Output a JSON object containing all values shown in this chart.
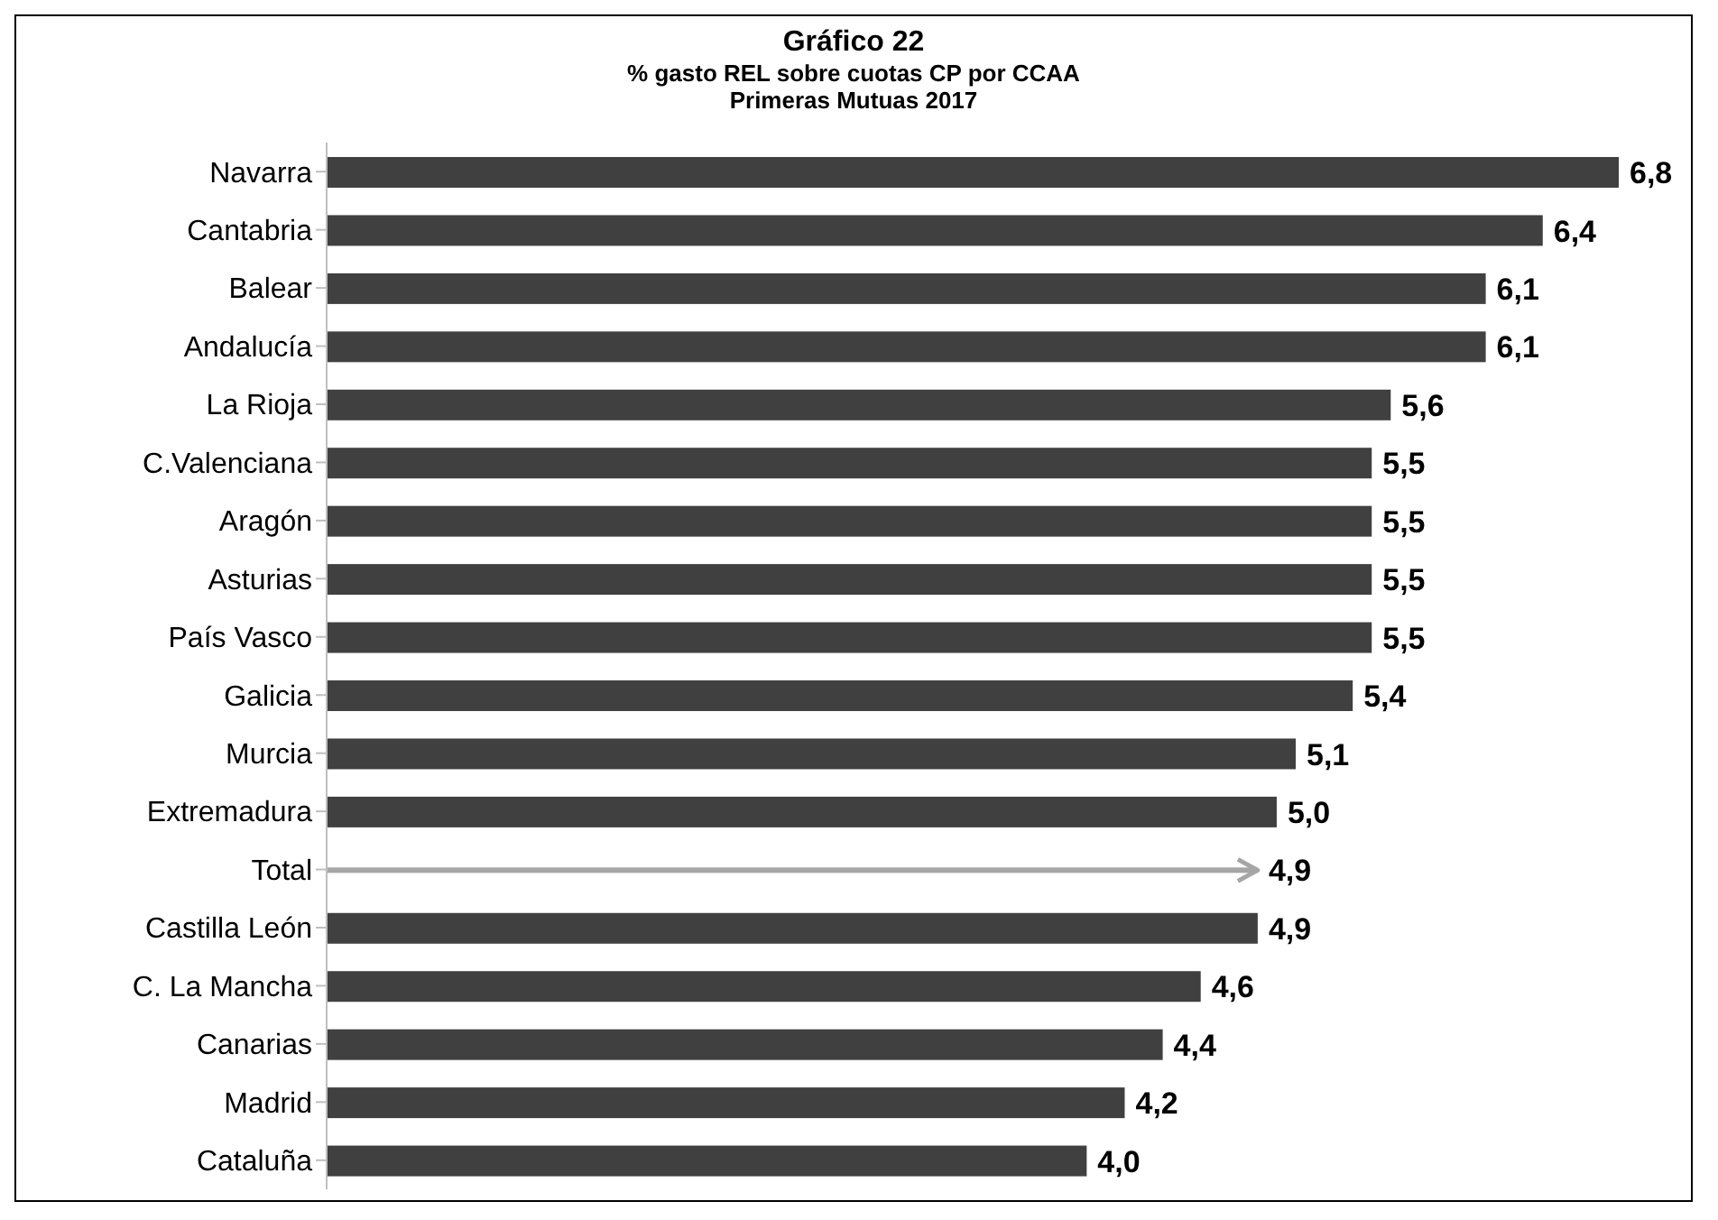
{
  "chart_data": {
    "type": "bar",
    "orientation": "horizontal",
    "title": "Gráfico 22",
    "subtitle": "% gasto REL sobre cuotas CP por CCAA\nPrimeras Mutuas 2017",
    "categories": [
      "Navarra",
      "Cantabria",
      "Balear",
      "Andalucía",
      "La Rioja",
      "C.Valenciana",
      "Aragón",
      "Asturias",
      "País Vasco",
      "Galicia",
      "Murcia",
      "Extremadura",
      "Total",
      "Castilla León",
      "C. La Mancha",
      "Canarias",
      "Madrid",
      "Cataluña"
    ],
    "values": [
      6.8,
      6.4,
      6.1,
      6.1,
      5.6,
      5.5,
      5.5,
      5.5,
      5.5,
      5.4,
      5.1,
      5.0,
      4.9,
      4.9,
      4.6,
      4.4,
      4.2,
      4.0
    ],
    "value_labels": [
      "6,8",
      "6,4",
      "6,1",
      "6,1",
      "5,6",
      "5,5",
      "5,5",
      "5,5",
      "5,5",
      "5,4",
      "5,1",
      "5,0",
      "4,9",
      "4,9",
      "4,6",
      "4,4",
      "4,2",
      "4,0"
    ],
    "colors": [
      "#404040",
      "#404040",
      "#404040",
      "#404040",
      "#404040",
      "#404040",
      "#404040",
      "#404040",
      "#404040",
      "#404040",
      "#404040",
      "#404040",
      "#a6a6a6",
      "#404040",
      "#404040",
      "#404040",
      "#404040",
      "#404040"
    ],
    "data_labels": false,
    "legend": false
  }
}
